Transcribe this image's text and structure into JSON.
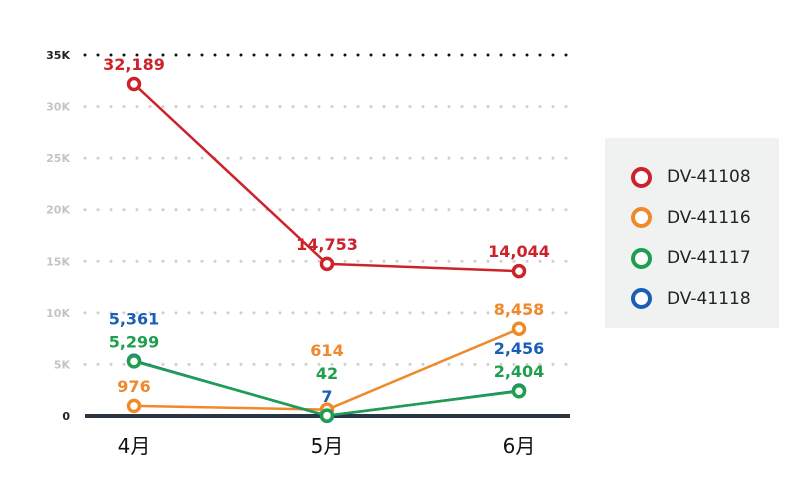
{
  "chart_data": {
    "type": "line",
    "categories": [
      "4月",
      "5月",
      "6月"
    ],
    "yticks": [
      "0",
      "5K",
      "10K",
      "15K",
      "20K",
      "25K",
      "30K",
      "35K"
    ],
    "ylim": [
      0,
      35000
    ],
    "grid": true,
    "legend_position": "right",
    "series": [
      {
        "name": "DV-41108",
        "color": "#cc2229",
        "values": [
          32189,
          14753,
          14044
        ],
        "labels": [
          "32,189",
          "14,753",
          "14,044"
        ]
      },
      {
        "name": "DV-41116",
        "color": "#ee8a2a",
        "values": [
          976,
          614,
          8458
        ],
        "labels": [
          "976",
          "614",
          "8,458"
        ]
      },
      {
        "name": "DV-41117",
        "color": "#1e9e4e",
        "values": [
          5299,
          42,
          2404
        ],
        "labels": [
          "5,299",
          "42",
          "2,404"
        ]
      },
      {
        "name": "DV-41118",
        "color": "#1b5eb8",
        "values": [
          5361,
          7,
          2456
        ],
        "labels": [
          "5,361",
          "7",
          "2,456"
        ]
      }
    ]
  }
}
